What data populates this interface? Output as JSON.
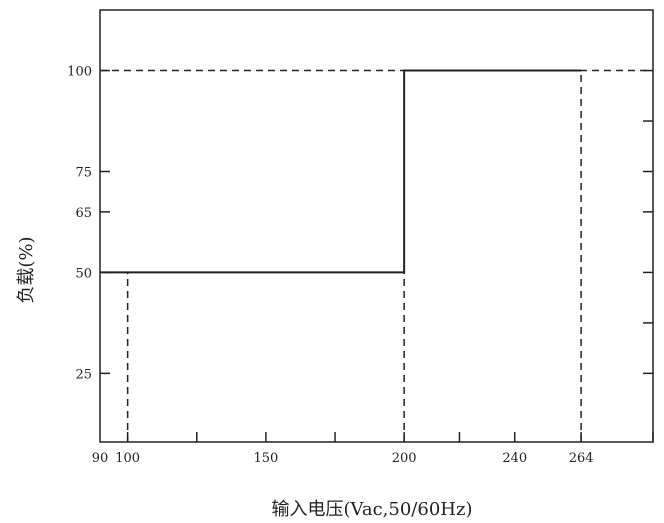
{
  "chart_data": {
    "type": "line",
    "title": "",
    "xlabel": "输入电压(Vac,50/60Hz)",
    "ylabel": "负载(%)",
    "x_tick_labels": [
      "90",
      "100",
      "150",
      "200",
      "240",
      "264"
    ],
    "y_tick_labels": [
      "25",
      "50",
      "65",
      "75",
      "100"
    ],
    "x_tick_values": [
      90,
      100,
      150,
      200,
      240,
      264
    ],
    "y_tick_values": [
      25,
      50,
      65,
      75,
      100
    ],
    "x_minor_ticks": [
      125,
      175,
      220,
      290
    ],
    "y_minor_ticks": [
      37.5,
      87.5
    ],
    "xlim": [
      90,
      290
    ],
    "ylim": [
      8,
      115
    ],
    "grid": false,
    "series": [
      {
        "line_style": "solid",
        "points": [
          [
            90,
            50
          ],
          [
            200,
            50
          ],
          [
            200,
            100
          ],
          [
            264,
            100
          ]
        ]
      }
    ],
    "reference_lines": [
      {
        "orientation": "horizontal",
        "value": 100,
        "from": 90,
        "to": 290,
        "style": "dashed"
      },
      {
        "orientation": "vertical",
        "value": 100,
        "from": 8,
        "to": 50,
        "style": "dashed"
      },
      {
        "orientation": "vertical",
        "value": 200,
        "from": 8,
        "to": 50,
        "style": "dashed"
      },
      {
        "orientation": "vertical",
        "value": 264,
        "from": 8,
        "to": 100,
        "style": "dashed"
      }
    ],
    "colors": {
      "line": "#222222",
      "text": "#222222",
      "frame": "#222222"
    }
  }
}
